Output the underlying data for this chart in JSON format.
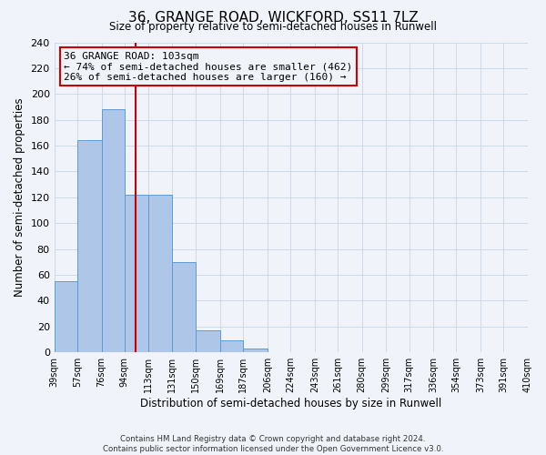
{
  "title": "36, GRANGE ROAD, WICKFORD, SS11 7LZ",
  "subtitle": "Size of property relative to semi-detached houses in Runwell",
  "xlabel": "Distribution of semi-detached houses by size in Runwell",
  "ylabel": "Number of semi-detached properties",
  "bin_edges": [
    39,
    57,
    76,
    94,
    113,
    131,
    150,
    169,
    187,
    206,
    224,
    243,
    261,
    280,
    299,
    317,
    336,
    354,
    373,
    391,
    410
  ],
  "bin_labels": [
    "39sqm",
    "57sqm",
    "76sqm",
    "94sqm",
    "113sqm",
    "131sqm",
    "150sqm",
    "169sqm",
    "187sqm",
    "206sqm",
    "224sqm",
    "243sqm",
    "261sqm",
    "280sqm",
    "299sqm",
    "317sqm",
    "336sqm",
    "354sqm",
    "373sqm",
    "391sqm",
    "410sqm"
  ],
  "counts": [
    55,
    164,
    188,
    122,
    122,
    70,
    17,
    9,
    3,
    0,
    0,
    0,
    0,
    0,
    0,
    0,
    0,
    0,
    0,
    0
  ],
  "bar_color": "#aec6e8",
  "bar_edge_color": "#5b9bd5",
  "property_value": 103,
  "vline_color": "#cc0000",
  "annotation_title": "36 GRANGE ROAD: 103sqm",
  "annotation_line1": "← 74% of semi-detached houses are smaller (462)",
  "annotation_line2": "26% of semi-detached houses are larger (160) →",
  "annotation_box_edge": "#cc0000",
  "ylim": [
    0,
    240
  ],
  "yticks": [
    0,
    20,
    40,
    60,
    80,
    100,
    120,
    140,
    160,
    180,
    200,
    220,
    240
  ],
  "footer1": "Contains HM Land Registry data © Crown copyright and database right 2024.",
  "footer2": "Contains public sector information licensed under the Open Government Licence v3.0.",
  "background_color": "#f0f4fa",
  "grid_color": "#c8d4e8"
}
